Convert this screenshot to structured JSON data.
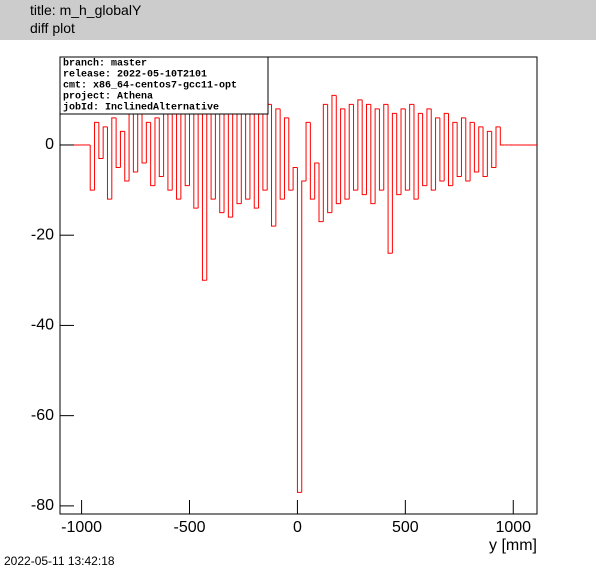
{
  "header": {
    "title": "title: m_h_globalY",
    "subtitle": "diff plot"
  },
  "info": [
    "branch:  master",
    "release: 2022-05-10T2101",
    "cmt:   x86_64-centos7-gcc11-opt",
    "project: Athena",
    "jobId:   InclinedAlternative"
  ],
  "timestamp": "2022-05-11 13:42:18",
  "chart_data": {
    "type": "histogram",
    "x_label": "y [mm]",
    "color": "#ff0000",
    "bins": [
      -1000,
      -980,
      -960,
      -940,
      -920,
      -900,
      -880,
      -860,
      -840,
      -820,
      -800,
      -780,
      -760,
      -740,
      -720,
      -700,
      -680,
      -660,
      -640,
      -620,
      -600,
      -580,
      -560,
      -540,
      -520,
      -500,
      -480,
      -460,
      -440,
      -420,
      -400,
      -380,
      -360,
      -340,
      -320,
      -300,
      -280,
      -260,
      -240,
      -220,
      -200,
      -180,
      -160,
      -140,
      -120,
      -100,
      -80,
      -60,
      -40,
      -20,
      0,
      20,
      40,
      60,
      80,
      100,
      120,
      140,
      160,
      180,
      200,
      220,
      240,
      260,
      280,
      300,
      320,
      340,
      360,
      380,
      400,
      420,
      440,
      460,
      480,
      500,
      520,
      540,
      560,
      580,
      600,
      620,
      640,
      660,
      680,
      700,
      720,
      740,
      760,
      780,
      800,
      820,
      840,
      860,
      880,
      900,
      920,
      940,
      960,
      980,
      1000
    ],
    "values": [
      0,
      0,
      -10,
      5,
      -3,
      4,
      -12,
      6,
      -5,
      3,
      -8,
      7,
      -6,
      8,
      -4,
      5,
      -9,
      6,
      -7,
      9,
      -10,
      7,
      -12,
      8,
      -9,
      10,
      -14,
      8,
      -30,
      9,
      -12,
      10,
      -15,
      11,
      -16,
      8,
      -13,
      9,
      -12,
      10,
      -14,
      7,
      -10,
      9,
      -18,
      8,
      -12,
      6,
      -10,
      -5,
      -77,
      -8,
      5,
      -12,
      -4,
      -17,
      9,
      -15,
      11,
      -13,
      8,
      -12,
      9,
      -10,
      10,
      -11,
      9,
      -13,
      8,
      -10,
      9,
      -24,
      7,
      -11,
      8,
      -10,
      9,
      -12,
      7,
      -9,
      8,
      -10,
      6,
      -8,
      7,
      -9,
      5,
      -7,
      6,
      -8,
      5,
      -6,
      4,
      -7,
      3,
      -5,
      4,
      0,
      0,
      0
    ],
    "xlim": [
      -1100,
      1110
    ],
    "ylim": [
      -81.8,
      19.5
    ],
    "xticks": [
      -1000,
      -500,
      0,
      500,
      1000
    ],
    "yticks": [
      0,
      -20,
      -40,
      -60,
      -80
    ]
  }
}
